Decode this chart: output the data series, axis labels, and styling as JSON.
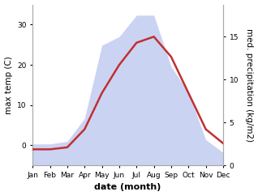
{
  "months": [
    "Jan",
    "Feb",
    "Mar",
    "Apr",
    "May",
    "Jun",
    "Jul",
    "Aug",
    "Sep",
    "Oct",
    "Nov",
    "Dec"
  ],
  "month_positions": [
    1,
    2,
    3,
    4,
    5,
    6,
    7,
    8,
    9,
    10,
    11,
    12
  ],
  "temperature": [
    -1.0,
    -1.0,
    -0.5,
    4.0,
    13.0,
    20.0,
    25.5,
    27.0,
    22.0,
    13.0,
    4.0,
    0.5
  ],
  "precipitation": [
    2.5,
    2.5,
    2.8,
    5.5,
    14.0,
    15.0,
    17.5,
    17.5,
    11.5,
    8.5,
    3.0,
    1.5
  ],
  "temp_color": "#c03030",
  "precip_fill_color": "#b0bcee",
  "precip_fill_alpha": 0.65,
  "temp_ylim": [
    -5,
    35
  ],
  "precip_ylim": [
    0,
    18.75
  ],
  "ylabel_left": "max temp (C)",
  "ylabel_right": "med. precipitation (kg/m2)",
  "xlabel": "date (month)",
  "right_yticks": [
    0,
    5,
    10,
    15
  ],
  "left_yticks": [
    0,
    10,
    20,
    30
  ],
  "bg_color": "#ffffff",
  "tick_fontsize": 6.5,
  "label_fontsize": 7.5,
  "xlabel_fontsize": 8,
  "line_width": 1.8
}
